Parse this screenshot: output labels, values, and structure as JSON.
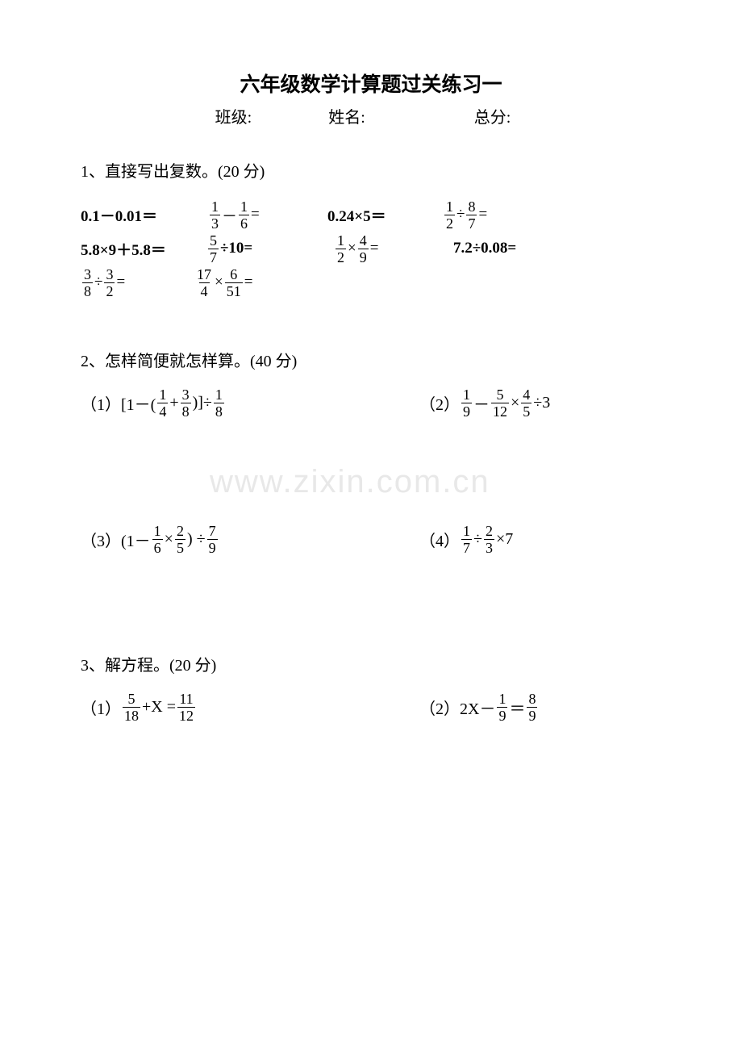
{
  "title": "六年级数学计算题过关练习一",
  "header": {
    "class_label": "班级:",
    "name_label": "姓名:",
    "score_label": "总分:"
  },
  "section1": {
    "title": "1、直接写出复数。(20 分)",
    "problems": {
      "p1": "0.1－0.01＝",
      "p2a": "1",
      "p2b": "3",
      "p2c": "1",
      "p2d": "6",
      "p3": "0.24×5＝",
      "p4a": "1",
      "p4b": "2",
      "p4c": "8",
      "p4d": "7",
      "p5": "5.8×9＋5.8＝",
      "p6a": "5",
      "p6b": "7",
      "p6c": "÷10=",
      "p7a": "1",
      "p7b": "2",
      "p7c": "4",
      "p7d": "9",
      "p8": "7.2÷0.08=",
      "p9a": "3",
      "p9b": "8",
      "p9c": "3",
      "p9d": "2",
      "p10a": "17",
      "p10b": "4",
      "p10c": "6",
      "p10d": "51"
    }
  },
  "section2": {
    "title": "2、怎样简便就怎样算。(40 分)",
    "q1_label": "（1）[1－(",
    "q1_f1n": "1",
    "q1_f1d": "4",
    "q1_f2n": "3",
    "q1_f2d": "8",
    "q1_mid": ")]÷",
    "q1_f3n": "1",
    "q1_f3d": "8",
    "q2_label": "（2）",
    "q2_f1n": "1",
    "q2_f1d": "9",
    "q2_f2n": "5",
    "q2_f2d": "12",
    "q2_f3n": "4",
    "q2_f3d": "5",
    "q2_end": "÷3",
    "q3_label": "（3）(1－",
    "q3_f1n": "1",
    "q3_f1d": "6",
    "q3_f2n": "2",
    "q3_f2d": "5",
    "q3_mid": ") ÷",
    "q3_f3n": "7",
    "q3_f3d": "9",
    "q4_label": "（4）",
    "q4_f1n": "1",
    "q4_f1d": "7",
    "q4_f2n": "2",
    "q4_f2d": "3",
    "q4_end": "×7"
  },
  "section3": {
    "title": "3、解方程。(20 分)",
    "q1_label": "（1）",
    "q1_f1n": "5",
    "q1_f1d": "18",
    "q1_mid": "+X = ",
    "q1_f2n": "11",
    "q1_f2d": "12",
    "q2_label": "（2）2X－",
    "q2_f1n": "1",
    "q2_f1d": "9",
    "q2_mid": " ＝ ",
    "q2_f2n": "8",
    "q2_f2d": "9"
  },
  "watermark": "www.zixin.com.cn"
}
